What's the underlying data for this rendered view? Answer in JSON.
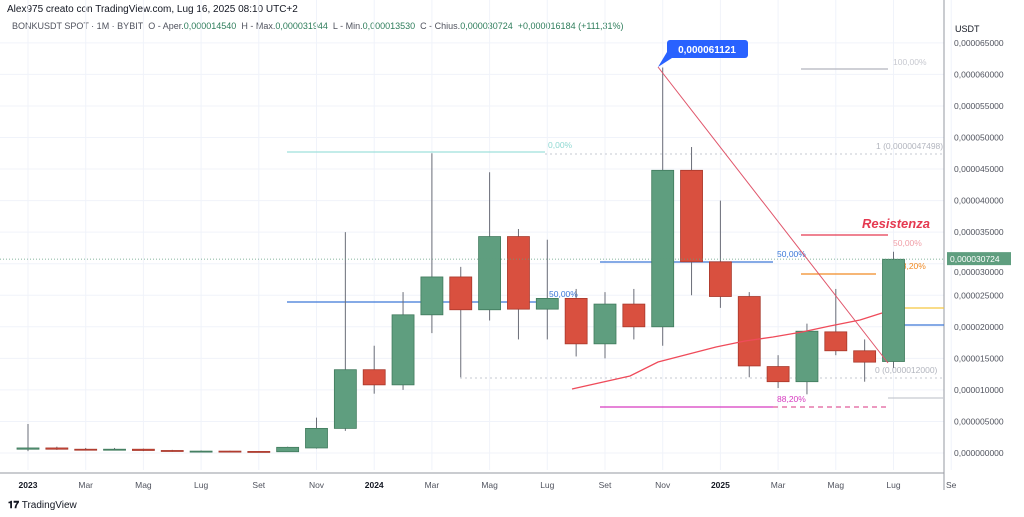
{
  "header": {
    "author": "Alex975 creato con TradingView.com, Lug 16, 2025 08:10 UTC+2",
    "symbol": "BONKUSDT SPOT · 1M · BYBIT",
    "o_label": "O - Aper.",
    "o": "0,000014540",
    "h_label": "H - Max.",
    "h": "0,000031944",
    "l_label": "L - Min.",
    "l": "0,000013530",
    "c_label": "C - Chius.",
    "c": "0,000030724",
    "change": "+0,000016184 (+111,31%)"
  },
  "footer": {
    "brand": "TradingView"
  },
  "colors": {
    "up": "#5f9e7f",
    "down": "#d9503f",
    "blue": "#3c78d8",
    "red": "#e53950"
  },
  "chart_data": {
    "type": "candlestick",
    "title": "BONKUSDT SPOT 1M BYBIT",
    "ylabel": "USDT",
    "ylim": [
      0,
      6.5e-05
    ],
    "unit_scale": "values in 1e-6 USDT",
    "y_ticks": [
      "0,000065000",
      "0,000060000",
      "0,000055000",
      "0,000050000",
      "0,000045000",
      "0,000040000",
      "0,000035000",
      "0,000030000",
      "0,000025000",
      "0,000020000",
      "0,000015000",
      "0,000010000",
      "0,000005000",
      "0,000000000"
    ],
    "x_ticks": [
      "2023",
      "Mar",
      "Mag",
      "Lug",
      "Set",
      "Nov",
      "2024",
      "Mar",
      "Mag",
      "Lug",
      "Set",
      "Nov",
      "2025",
      "Mar",
      "Mag",
      "Lug",
      "Se"
    ],
    "current_price": "0,000030724",
    "candles": [
      [
        0.6,
        4.6,
        0.3,
        0.8
      ],
      [
        0.8,
        1.0,
        0.5,
        0.6
      ],
      [
        0.6,
        0.8,
        0.4,
        0.5
      ],
      [
        0.5,
        0.8,
        0.4,
        0.6
      ],
      [
        0.6,
        0.7,
        0.3,
        0.4
      ],
      [
        0.4,
        0.5,
        0.2,
        0.3
      ],
      [
        0.3,
        0.4,
        0.2,
        0.3
      ],
      [
        0.3,
        0.35,
        0.2,
        0.25
      ],
      [
        0.25,
        0.3,
        0.2,
        0.2
      ],
      [
        0.2,
        1.0,
        0.2,
        0.9
      ],
      [
        0.8,
        5.6,
        0.7,
        3.9
      ],
      [
        3.9,
        35,
        3.5,
        13.2
      ],
      [
        13.2,
        17,
        9.4,
        10.8
      ],
      [
        10.8,
        25.5,
        10,
        21.9
      ],
      [
        21.9,
        47.5,
        19,
        27.9
      ],
      [
        27.9,
        29.5,
        12,
        22.7
      ],
      [
        22.7,
        44.5,
        21,
        34.3
      ],
      [
        34.3,
        35.5,
        18,
        22.8
      ],
      [
        22.8,
        33.8,
        18,
        24.5
      ],
      [
        24.5,
        26,
        15.3,
        17.3
      ],
      [
        17.3,
        25.5,
        15,
        23.6
      ],
      [
        23.6,
        26,
        18,
        20
      ],
      [
        20,
        61.1,
        17,
        44.8
      ],
      [
        44.8,
        48.5,
        25,
        30.3
      ],
      [
        30.3,
        40,
        23,
        24.8
      ],
      [
        24.8,
        25.5,
        12,
        13.8
      ],
      [
        13.7,
        15.5,
        10.3,
        11.3
      ],
      [
        11.3,
        20.5,
        9.3,
        19.3
      ],
      [
        19.2,
        26,
        15.5,
        16.2
      ],
      [
        16.2,
        18,
        11.3,
        14.4
      ],
      [
        14.5,
        31.9,
        13.5,
        30.7
      ]
    ],
    "annotations": {
      "peak": "0,000061121",
      "fib1_0": "0,00%",
      "fib1_50": "50,00%",
      "fib2_50": "50,00%",
      "fib2_882": "88,20%",
      "fib3_100": "100,00%",
      "fib3_1": "1 (0,0000047498)",
      "fib3_50": "50,00%",
      "fib3_782": "78,20%",
      "fib3_0": "0 (0,000012000)",
      "resistance": "Resistenza"
    }
  }
}
